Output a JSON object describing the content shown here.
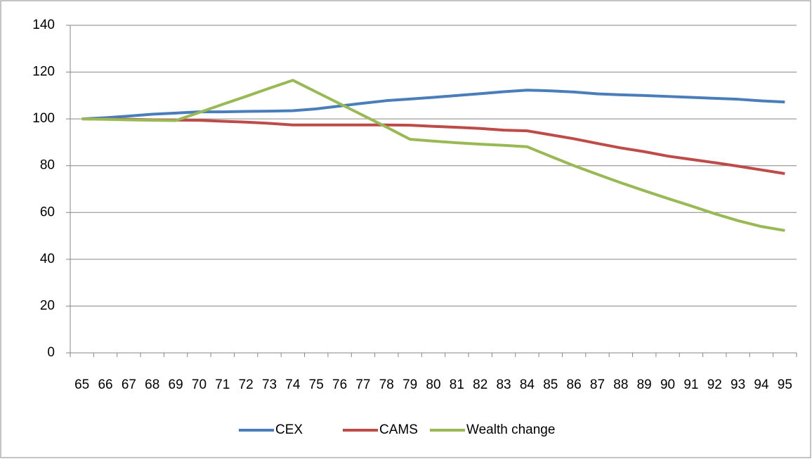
{
  "chart_data": {
    "type": "line",
    "categories": [
      "65",
      "66",
      "67",
      "68",
      "69",
      "70",
      "71",
      "72",
      "73",
      "74",
      "75",
      "76",
      "77",
      "78",
      "79",
      "80",
      "81",
      "82",
      "83",
      "84",
      "85",
      "86",
      "87",
      "88",
      "89",
      "90",
      "91",
      "92",
      "93",
      "94",
      "95"
    ],
    "series": [
      {
        "name": "CEX",
        "color": "#4a7ebb",
        "values": [
          100,
          100.5,
          101.2,
          102,
          102.5,
          103,
          103,
          103.2,
          103.3,
          103.5,
          104.3,
          105.5,
          106.7,
          107.8,
          108.5,
          109.2,
          110,
          110.8,
          111.6,
          112.3,
          112,
          111.5,
          110.7,
          110.3,
          110,
          109.6,
          109.2,
          108.8,
          108.4,
          107.7,
          107.2
        ]
      },
      {
        "name": "CAMS",
        "color": "#be4b48",
        "values": [
          100,
          99.9,
          99.8,
          99.6,
          99.5,
          99.4,
          99,
          98.6,
          98.1,
          97.4,
          97.4,
          97.4,
          97.4,
          97.4,
          97.3,
          96.8,
          96.4,
          95.9,
          95.2,
          94.9,
          93.2,
          91.5,
          89.5,
          87.6,
          86,
          84.1,
          82.7,
          81.3,
          79.8,
          78.2,
          76.6
        ]
      },
      {
        "name": "Wealth change",
        "color": "#98b954",
        "values": [
          100,
          99.8,
          99.6,
          99.4,
          99.3,
          102.7,
          106.2,
          109.6,
          113.1,
          116.5,
          111.5,
          106.5,
          101.5,
          96.5,
          91.3,
          90.5,
          89.8,
          89.2,
          88.7,
          88.1,
          84,
          80,
          76.3,
          72.7,
          69.3,
          66,
          62.8,
          59.5,
          56.5,
          54,
          52.3
        ]
      }
    ],
    "ylim": [
      0,
      140
    ],
    "yticks": [
      0,
      20,
      40,
      60,
      80,
      100,
      120,
      140
    ],
    "grid": true,
    "legend": "bottom"
  }
}
